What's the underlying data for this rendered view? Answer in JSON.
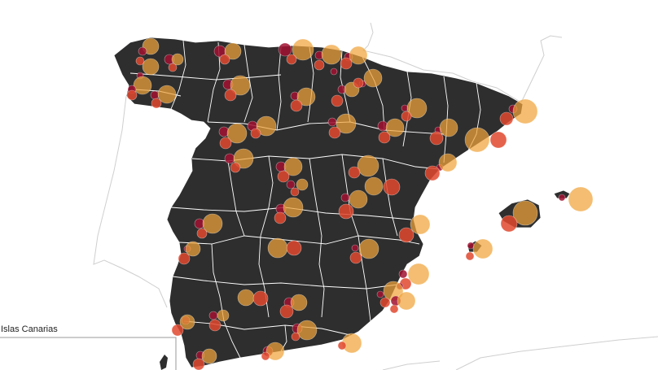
{
  "inset": {
    "label": "Islas Canarias"
  },
  "colors": {
    "land": "#2e2e2e",
    "borders": "#ffffff",
    "neighbors": "#cfcfcf",
    "inset_frame": "#999999",
    "bubble_dark": "#a01030",
    "bubble_mid": "#e0482e",
    "bubble_light": "#f0a43a"
  },
  "bubble_legend": [
    "dark-red",
    "red-orange",
    "light-orange"
  ]
}
